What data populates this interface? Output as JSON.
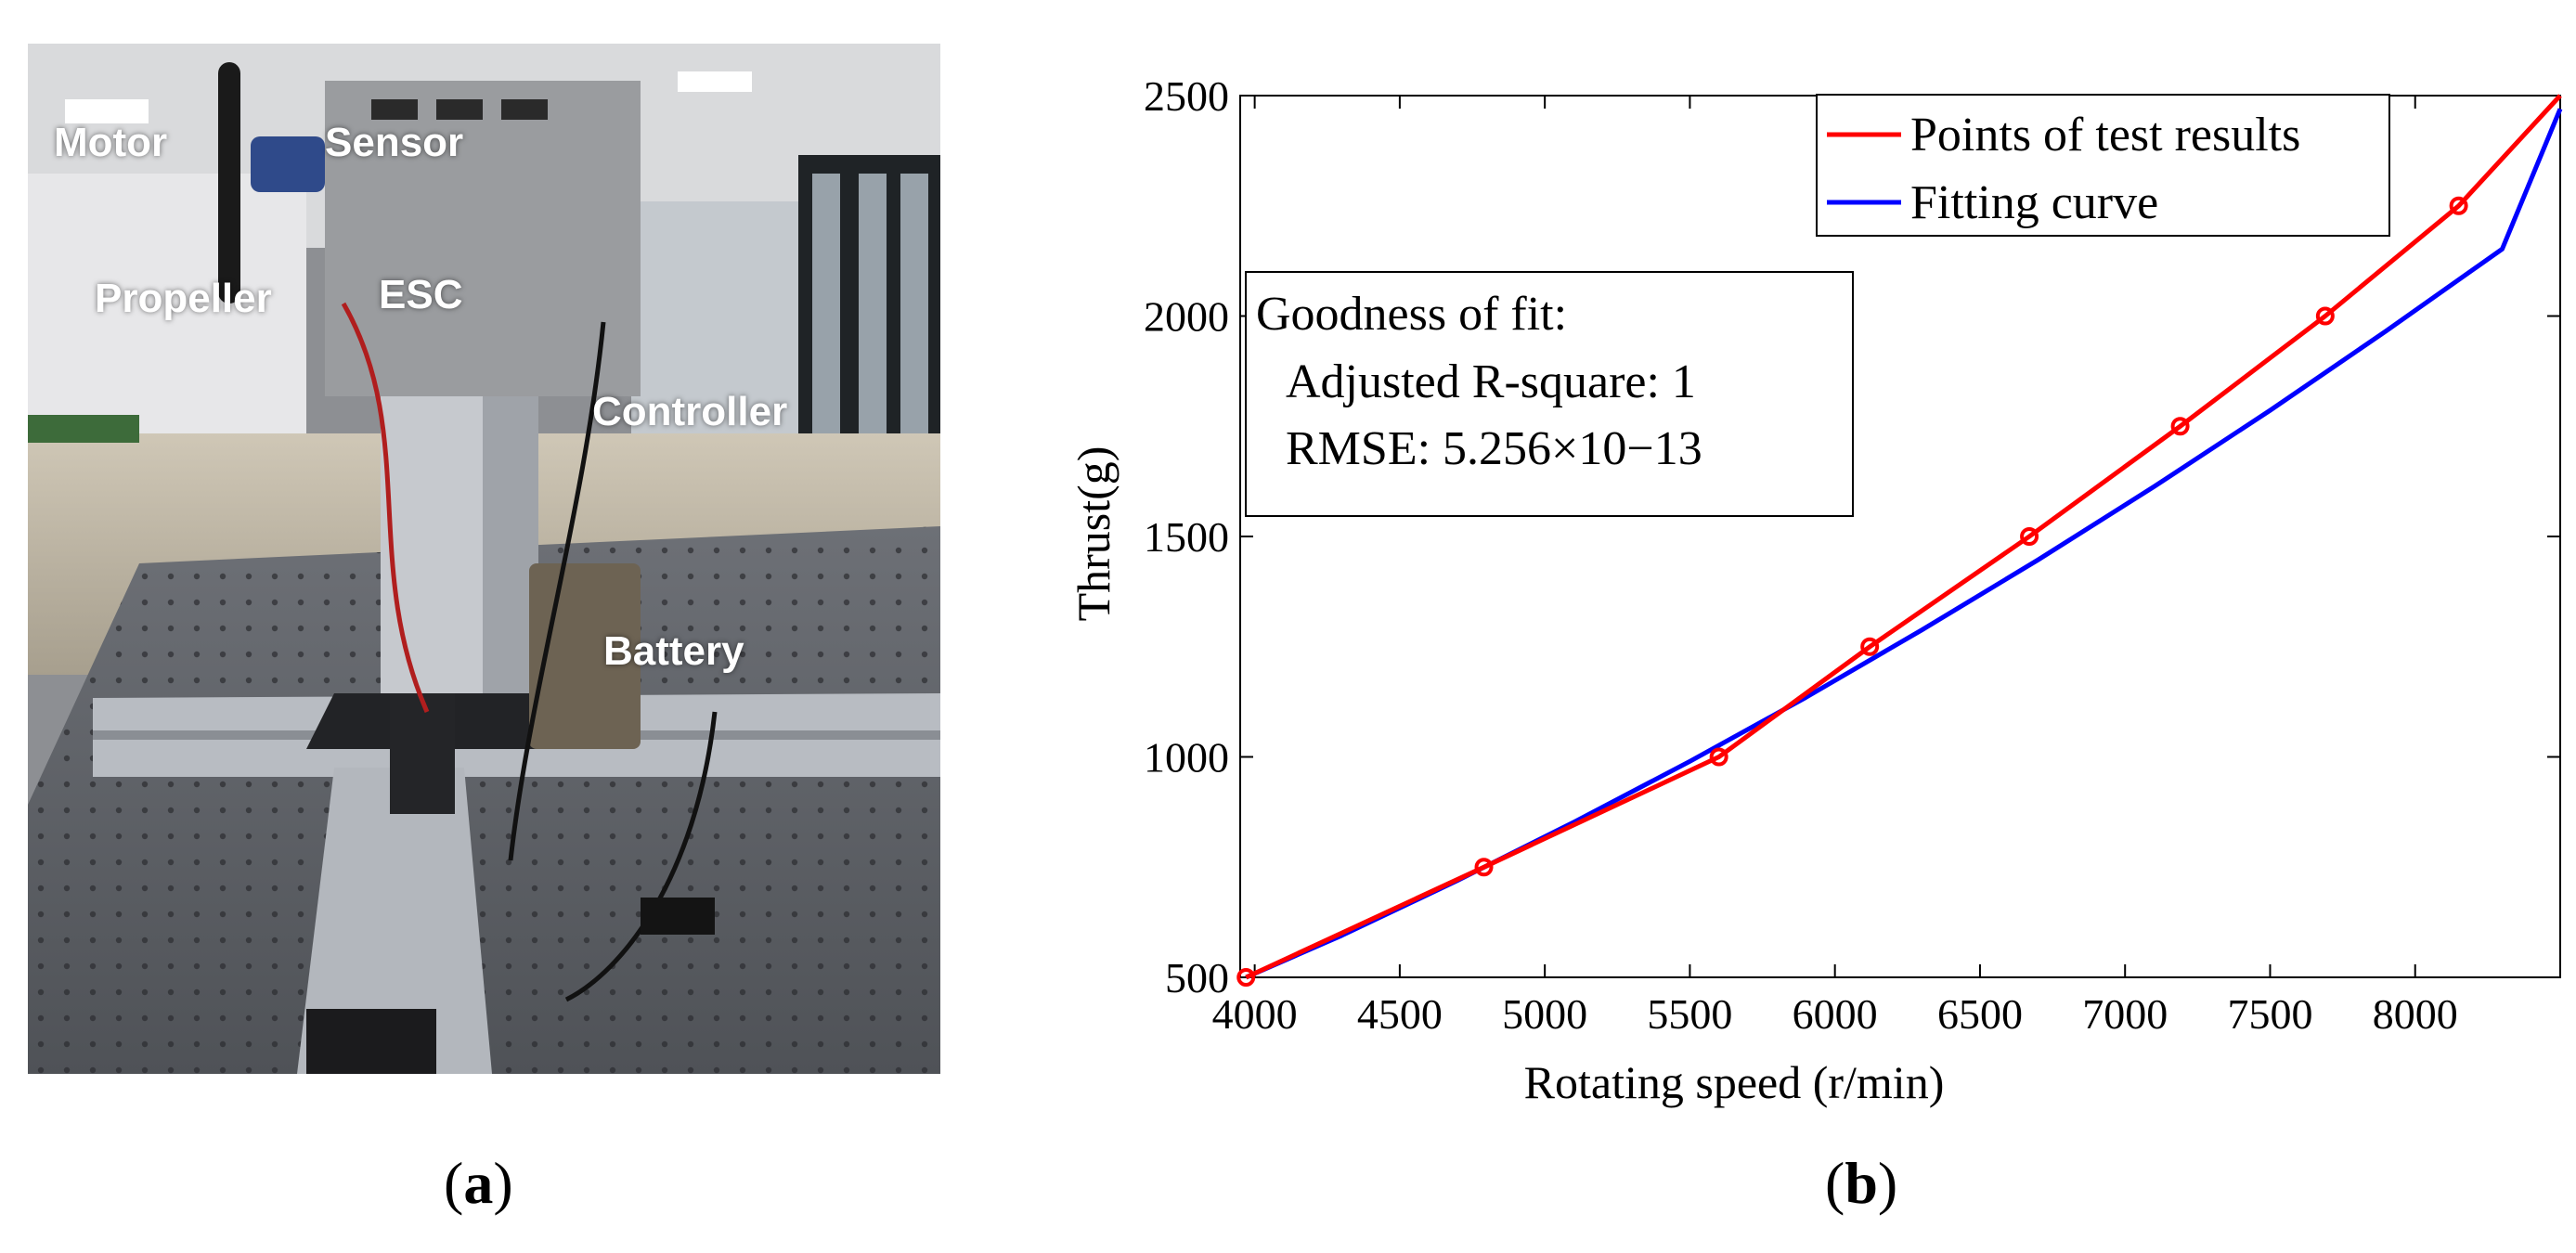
{
  "panel_a": {
    "caption_open": "(",
    "caption_letter": "a",
    "caption_close": ")",
    "labels": {
      "motor": "Motor",
      "sensor": "Sensor",
      "propeller": "Propeller",
      "esc": "ESC",
      "controller": "Controller",
      "battery": "Battery"
    }
  },
  "panel_b": {
    "caption_open": "(",
    "caption_letter": "b",
    "caption_close": ")"
  },
  "chart_data": {
    "type": "line",
    "title": "",
    "xlabel": "Rotating speed (r/min)",
    "ylabel": "Thrust(g)",
    "xlim": [
      3950,
      8500
    ],
    "ylim": [
      500,
      2500
    ],
    "xticks": [
      4000,
      4500,
      5000,
      5500,
      6000,
      6500,
      7000,
      7500,
      8000
    ],
    "yticks": [
      500,
      1000,
      1500,
      2000,
      2500
    ],
    "series": [
      {
        "name": "Points of test results",
        "color": "#ff0000",
        "marker": "circle",
        "x": [
          3970,
          4790,
          5600,
          6120,
          6670,
          7190,
          7690,
          8150,
          8500
        ],
        "y": [
          500,
          750,
          1000,
          1250,
          1500,
          1750,
          2000,
          2250,
          2500
        ]
      },
      {
        "name": "Fitting curve",
        "color": "#0000ff",
        "marker": "none",
        "x": [
          3970,
          4300,
          4700,
          5100,
          5500,
          5900,
          6300,
          6700,
          7100,
          7500,
          7900,
          8300,
          8500
        ],
        "y": [
          500,
          595,
          720,
          852,
          990,
          1135,
          1288,
          1447,
          1613,
          1786,
          1966,
          2152,
          2470
        ]
      }
    ],
    "legend_position": "top-right",
    "annotation": {
      "title": "Goodness of fit:",
      "line1": "Adjusted R-square: 1",
      "line2": "RMSE: 5.256×10−13"
    }
  }
}
